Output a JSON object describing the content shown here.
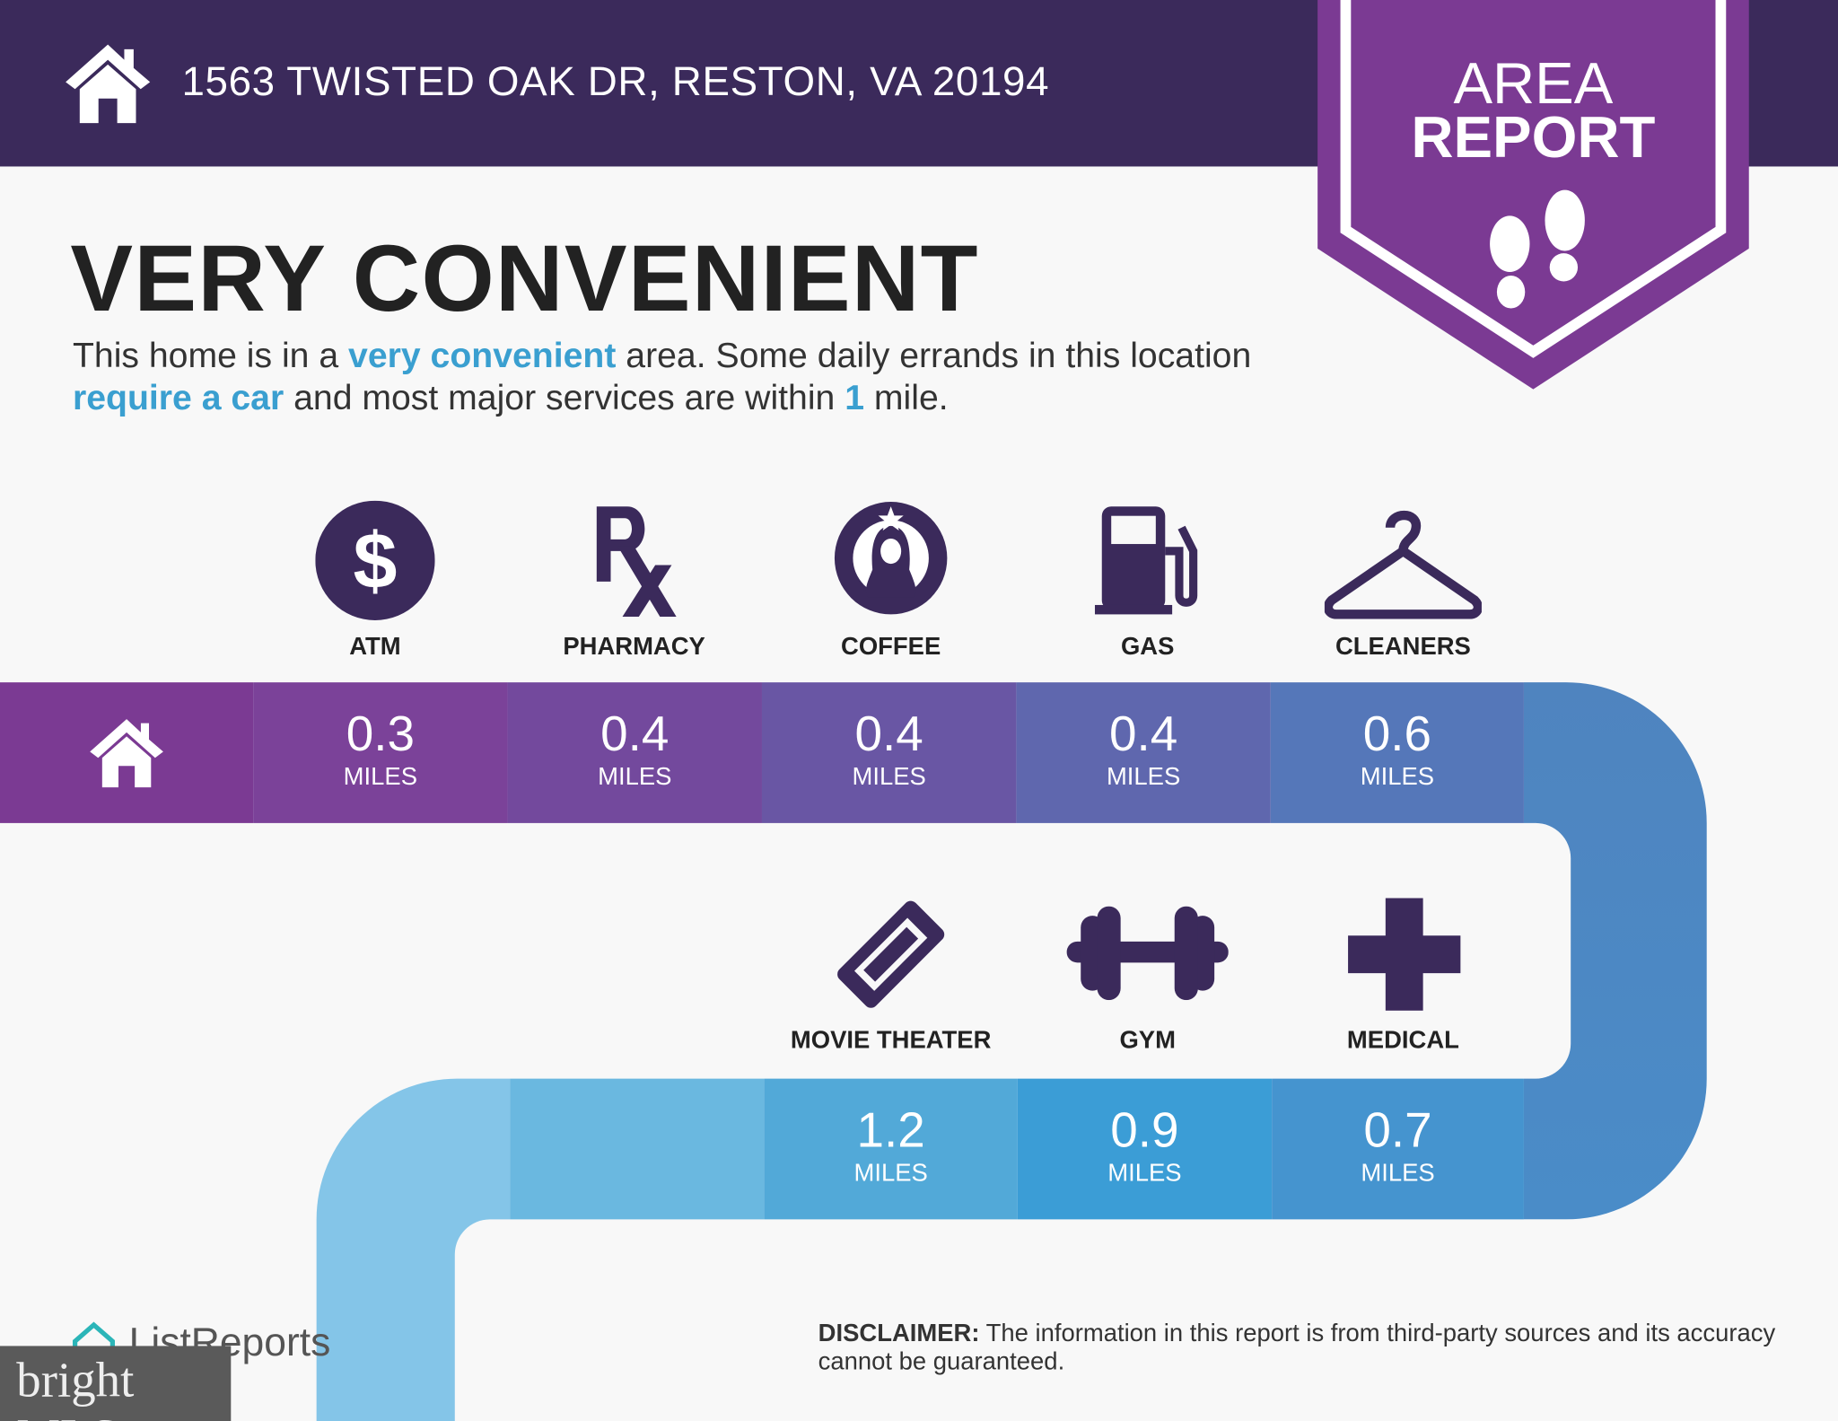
{
  "header": {
    "address": "1563 TWISTED OAK DR, RESTON, VA 20194",
    "icon": "home-icon"
  },
  "banner": {
    "line1": "AREA",
    "line2": "REPORT",
    "icon": "footprints-icon"
  },
  "headline": "VERY CONVENIENT",
  "description": {
    "p1": "This home is in a ",
    "h1": "very convenient",
    "p2": " area. Some daily errands in this location ",
    "h2": "require a car",
    "p3": " and most major services are within ",
    "h3": "1",
    "p4": " mile."
  },
  "row1": [
    {
      "label": "ATM",
      "value": "0.3",
      "unit": "MILES",
      "icon": "dollar-icon"
    },
    {
      "label": "PHARMACY",
      "value": "0.4",
      "unit": "MILES",
      "icon": "rx-icon"
    },
    {
      "label": "COFFEE",
      "value": "0.4",
      "unit": "MILES",
      "icon": "coffee-logo-icon"
    },
    {
      "label": "GAS",
      "value": "0.4",
      "unit": "MILES",
      "icon": "gas-pump-icon"
    },
    {
      "label": "CLEANERS",
      "value": "0.6",
      "unit": "MILES",
      "icon": "hanger-icon"
    }
  ],
  "row2": [
    {
      "label": "MOVIE THEATER",
      "value": "1.2",
      "unit": "MILES",
      "icon": "ticket-icon"
    },
    {
      "label": "GYM",
      "value": "0.9",
      "unit": "MILES",
      "icon": "dumbbell-icon"
    },
    {
      "label": "MEDICAL",
      "value": "0.7",
      "unit": "MILES",
      "icon": "medical-cross-icon"
    }
  ],
  "footer": {
    "logo": "ListReports",
    "watermark": "bright MLS",
    "disclaimer_label": "DISCLAIMER:",
    "disclaimer_text": " The information in this report is from third-party sources and its accuracy cannot be guaranteed."
  },
  "colors": {
    "header": "#3b2a5b",
    "banner": "#7b3a93",
    "accent": "#3a9fd0",
    "icon": "#3b2a5b"
  }
}
